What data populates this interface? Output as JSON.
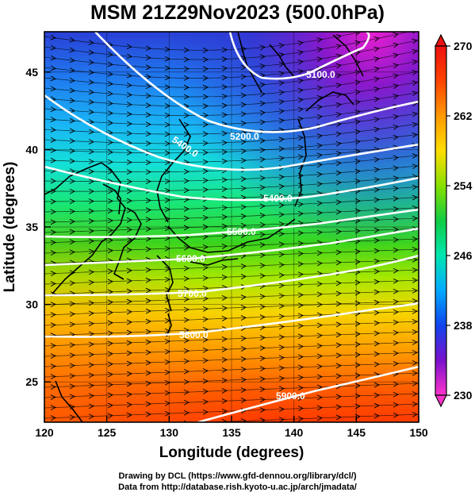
{
  "title": "MSM 21Z29Nov2023 (500.0hPa)",
  "x_axis": {
    "label": "Longitude (degrees)",
    "ticks": [
      "120",
      "125",
      "130",
      "135",
      "140",
      "145",
      "150"
    ],
    "range": [
      120,
      150
    ]
  },
  "y_axis": {
    "label": "Latitude  (degrees)",
    "ticks": [
      "25",
      "30",
      "35",
      "40",
      "45"
    ],
    "range": [
      22.4,
      47.6
    ]
  },
  "colorbar": {
    "labels": [
      "270",
      "262",
      "254",
      "246",
      "238",
      "230"
    ],
    "range": [
      230,
      270
    ],
    "colors": [
      "#ff33cc",
      "#9900cc",
      "#2222cc",
      "#1166ff",
      "#00ccff",
      "#00ee88",
      "#22cc22",
      "#aaee00",
      "#ffcc00",
      "#ff8800",
      "#ff3300",
      "#ee1111"
    ]
  },
  "contours": [
    {
      "label": "5100.0"
    },
    {
      "label": "5200.0"
    },
    {
      "label": "5400.0"
    },
    {
      "label": "5400.0"
    },
    {
      "label": "5500.0"
    },
    {
      "label": "5600.0"
    },
    {
      "label": "5700.0"
    },
    {
      "label": "5800.0"
    },
    {
      "label": "5900.0"
    }
  ],
  "credits": {
    "line1": "Drawing by DCL (https://www.gfd-dennou.org/library/dcl/)",
    "line2": "Data from http://database.rish.kyoto-u.ac.jp/arch/jmadata/"
  }
}
